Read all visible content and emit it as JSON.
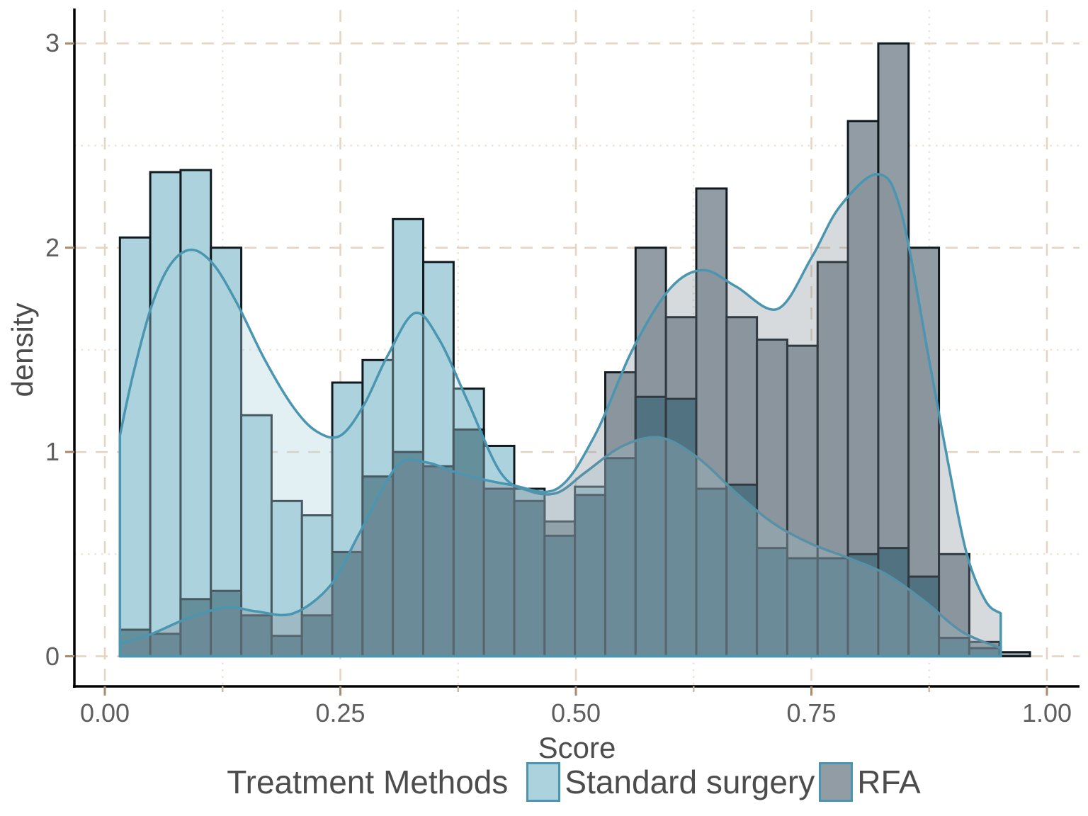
{
  "chart_data": {
    "type": "histogram-with-density",
    "title": "",
    "xlabel": "Score",
    "ylabel": "density",
    "x_ticks": [
      "0.00",
      "0.25",
      "0.50",
      "0.75",
      "1.00"
    ],
    "x_tick_values": [
      0,
      0.25,
      0.5,
      0.75,
      1.0
    ],
    "x_minor_values": [
      0.125,
      0.375,
      0.625,
      0.875
    ],
    "y_ticks": [
      "0",
      "1",
      "2",
      "3"
    ],
    "y_tick_values": [
      0,
      1,
      2,
      3
    ],
    "y_minor_values": [
      0.5,
      1.5,
      2.5
    ],
    "xlim": [
      -0.03,
      1.04
    ],
    "ylim": [
      0,
      3.15
    ],
    "grid": true,
    "legend_position": "bottom",
    "bins": {
      "start": 0.016,
      "width": 0.0322
    },
    "series": [
      {
        "name": "Standard surgery",
        "color": "#abd2dd",
        "values": [
          2.05,
          2.37,
          2.38,
          2.0,
          1.18,
          0.76,
          0.69,
          1.34,
          1.45,
          2.14,
          1.93,
          1.31,
          1.03,
          0.82,
          0.59,
          0.83,
          0.97,
          1.27,
          1.26,
          0.82,
          0.84,
          0.53,
          0.48,
          0.48,
          0.5,
          0.53,
          0.39,
          0.09,
          0.04,
          0.0
        ]
      },
      {
        "name": "RFA",
        "color": "#919ca4",
        "values": [
          0.13,
          0.11,
          0.28,
          0.32,
          0.2,
          0.1,
          0.2,
          0.51,
          0.88,
          1.0,
          0.93,
          1.11,
          0.82,
          0.76,
          0.66,
          0.79,
          1.39,
          2.0,
          1.66,
          2.29,
          1.66,
          1.55,
          1.52,
          1.93,
          2.62,
          3.0,
          2.0,
          0.5,
          0.07,
          0.02
        ]
      }
    ],
    "kde": [
      {
        "name": "Standard surgery",
        "points": [
          [
            0.016,
            1.08
          ],
          [
            0.03,
            1.38
          ],
          [
            0.05,
            1.72
          ],
          [
            0.07,
            1.92
          ],
          [
            0.092,
            1.99
          ],
          [
            0.115,
            1.92
          ],
          [
            0.14,
            1.73
          ],
          [
            0.17,
            1.45
          ],
          [
            0.2,
            1.22
          ],
          [
            0.225,
            1.1
          ],
          [
            0.25,
            1.08
          ],
          [
            0.275,
            1.23
          ],
          [
            0.3,
            1.47
          ],
          [
            0.329,
            1.68
          ],
          [
            0.355,
            1.55
          ],
          [
            0.385,
            1.25
          ],
          [
            0.42,
            0.9
          ],
          [
            0.45,
            0.81
          ],
          [
            0.48,
            0.8
          ],
          [
            0.51,
            0.9
          ],
          [
            0.55,
            1.03
          ],
          [
            0.59,
            1.07
          ],
          [
            0.63,
            0.97
          ],
          [
            0.67,
            0.8
          ],
          [
            0.71,
            0.65
          ],
          [
            0.75,
            0.55
          ],
          [
            0.79,
            0.48
          ],
          [
            0.83,
            0.4
          ],
          [
            0.87,
            0.27
          ],
          [
            0.91,
            0.12
          ],
          [
            0.951,
            0.04
          ]
        ]
      },
      {
        "name": "RFA",
        "points": [
          [
            0.016,
            0.06
          ],
          [
            0.05,
            0.11
          ],
          [
            0.09,
            0.19
          ],
          [
            0.13,
            0.24
          ],
          [
            0.16,
            0.22
          ],
          [
            0.2,
            0.21
          ],
          [
            0.24,
            0.35
          ],
          [
            0.27,
            0.6
          ],
          [
            0.31,
            0.93
          ],
          [
            0.34,
            0.95
          ],
          [
            0.38,
            0.89
          ],
          [
            0.43,
            0.84
          ],
          [
            0.48,
            0.82
          ],
          [
            0.52,
            1.08
          ],
          [
            0.56,
            1.5
          ],
          [
            0.6,
            1.8
          ],
          [
            0.635,
            1.89
          ],
          [
            0.67,
            1.81
          ],
          [
            0.714,
            1.7
          ],
          [
            0.75,
            1.95
          ],
          [
            0.78,
            2.2
          ],
          [
            0.82,
            2.36
          ],
          [
            0.845,
            2.18
          ],
          [
            0.875,
            1.45
          ],
          [
            0.895,
            0.95
          ],
          [
            0.915,
            0.5
          ],
          [
            0.935,
            0.27
          ],
          [
            0.951,
            0.21
          ]
        ]
      }
    ],
    "style": {
      "overlap_color": "#3f6b7a",
      "bar_outline": "#111a1f",
      "kde_stroke": "#4a96b0",
      "ribbon_blue_rgba": [
        174,
        212,
        222,
        0.35
      ],
      "ribbon_gray_rgba": [
        122,
        134,
        143,
        0.3
      ],
      "grid_major": "#e5d4c0",
      "grid_minor": "#efe4d6",
      "axis_line": "#000000",
      "tick_major": "#a98b6d",
      "tick_minor": "#cdb9a4"
    }
  },
  "legend": {
    "title": "Treatment Methods",
    "items": [
      "Standard surgery",
      "RFA"
    ]
  }
}
